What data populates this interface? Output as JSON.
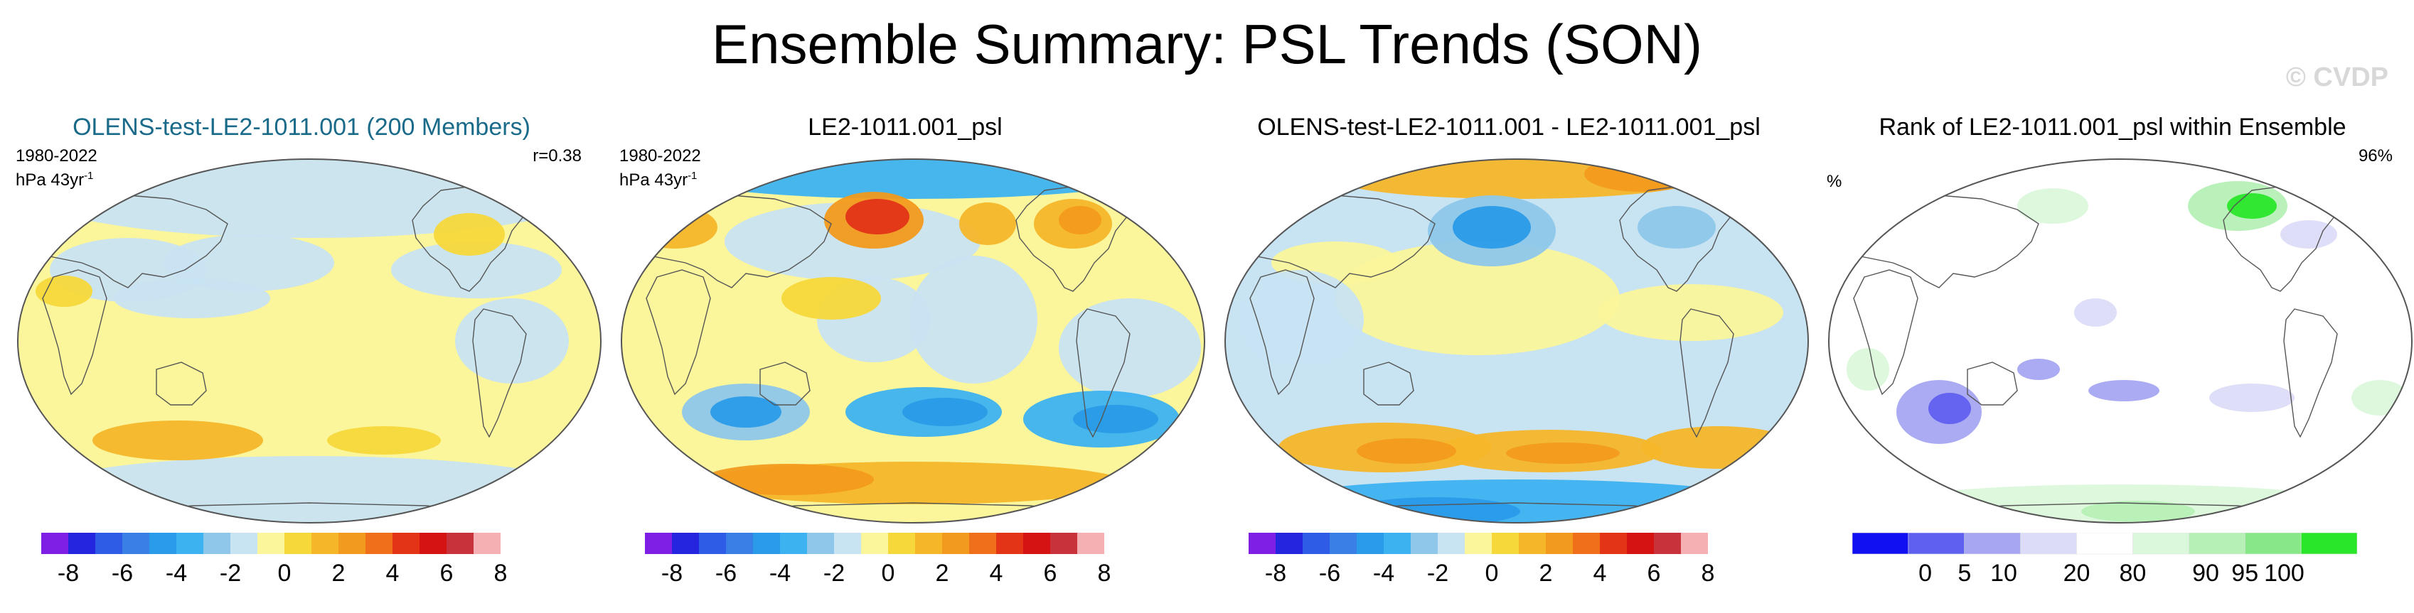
{
  "title": "Ensemble Summary: PSL Trends (SON)",
  "watermark": "© CVDP",
  "colors": {
    "neg": [
      "#7f1fe6",
      "#2525df",
      "#2f5ce6",
      "#3a7fe6",
      "#2a9be8",
      "#3db2f0",
      "#8ec7ea",
      "#c8e3f2"
    ],
    "pos": [
      "#fbf59b",
      "#f7d83a",
      "#f5b62a",
      "#f29a1e",
      "#ef6f1a",
      "#e33418",
      "#d51313",
      "#c8323a",
      "#f4b0b2"
    ],
    "rank": [
      "#1010f0",
      "#6060f0",
      "#a6a6f2",
      "#dcdcf8",
      "#ffffff",
      "#dcf8dc",
      "#b6f0b6",
      "#86e886",
      "#2ae62a"
    ],
    "ocean_pos": "#fbf59b",
    "ocean_neg": "#c8e3f2",
    "coast": "#555555"
  },
  "panels": [
    {
      "title": "OLENS-test-LE2-1011.001 (200 Members)",
      "period": "1980-2022",
      "units": "hPa 43yr",
      "units_sup": "-1",
      "stat": "r=0.38",
      "colorbar": "trend",
      "pattern": "ensemble"
    },
    {
      "title": "LE2-1011.001_psl",
      "period": "1980-2022",
      "units": "hPa 43yr",
      "units_sup": "-1",
      "stat": "",
      "colorbar": "trend",
      "pattern": "obs"
    },
    {
      "title": "OLENS-test-LE2-1011.001 - LE2-1011.001_psl",
      "period": "",
      "units": "",
      "units_sup": "",
      "stat": "",
      "colorbar": "trend",
      "pattern": "diff"
    },
    {
      "title": "Rank of LE2-1011.001_psl within Ensemble",
      "period": "%",
      "units": "",
      "units_sup": "",
      "stat": "96%",
      "colorbar": "rank",
      "pattern": "rank"
    }
  ],
  "chart_data": [
    {
      "type": "heatmap",
      "title": "OLENS-test-LE2-1011.001 (200 Members)",
      "units": "hPa 43yr-1",
      "period": "1980-2022",
      "pattern_correlation": 0.38,
      "colorbar_levels": [
        -8,
        -7,
        -6,
        -5,
        -4,
        -3,
        -2,
        -1,
        0,
        1,
        2,
        3,
        4,
        5,
        6,
        7,
        8
      ],
      "colorbar_tick_labels": [
        "-8",
        "-6",
        "-4",
        "-2",
        "0",
        "2",
        "4",
        "6",
        "8"
      ],
      "features": [
        {
          "region": "Southern Ocean 40-50S Pacific",
          "value": 2
        },
        {
          "region": "Antarctic coast",
          "value": -1
        },
        {
          "region": "North Atlantic 40N",
          "value": 1
        },
        {
          "region": "Arctic",
          "value": -1
        },
        {
          "region": "Tropics",
          "value": 0.5
        }
      ]
    },
    {
      "type": "heatmap",
      "title": "LE2-1011.001_psl",
      "units": "hPa 43yr-1",
      "period": "1980-2022",
      "colorbar_levels": [
        -8,
        -7,
        -6,
        -5,
        -4,
        -3,
        -2,
        -1,
        0,
        1,
        2,
        3,
        4,
        5,
        6,
        7,
        8
      ],
      "colorbar_tick_labels": [
        "-8",
        "-6",
        "-4",
        "-2",
        "0",
        "2",
        "4",
        "6",
        "8"
      ],
      "features": [
        {
          "region": "North Pacific 50N",
          "value": 6
        },
        {
          "region": "Eurasia 60N",
          "value": 3
        },
        {
          "region": "Arctic",
          "value": -3
        },
        {
          "region": "South Pacific 50S",
          "value": -4
        },
        {
          "region": "South Atlantic 45S",
          "value": -4
        },
        {
          "region": "Antarctic coast",
          "value": 3
        }
      ]
    },
    {
      "type": "heatmap",
      "title": "OLENS-test-LE2-1011.001 - LE2-1011.001_psl",
      "colorbar_levels": [
        -8,
        -7,
        -6,
        -5,
        -4,
        -3,
        -2,
        -1,
        0,
        1,
        2,
        3,
        4,
        5,
        6,
        7,
        8
      ],
      "colorbar_tick_labels": [
        "-8",
        "-6",
        "-4",
        "-2",
        "0",
        "2",
        "4",
        "6",
        "8"
      ],
      "features": [
        {
          "region": "North Pacific 50N",
          "value": -4
        },
        {
          "region": "Southern Ocean 45-55S",
          "value": 3
        },
        {
          "region": "Antarctic coast",
          "value": -4
        },
        {
          "region": "Arctic",
          "value": 2
        }
      ]
    },
    {
      "type": "heatmap",
      "title": "Rank of LE2-1011.001_psl within Ensemble",
      "units": "%",
      "percent_of_grid_within_5_95": "96%",
      "colorbar_levels": [
        0,
        5,
        10,
        20,
        80,
        90,
        95,
        100
      ],
      "colorbar_tick_labels": [
        "0",
        "5",
        "10",
        "20",
        "80",
        "90",
        "95",
        "100"
      ],
      "features": [
        {
          "region": "Arctic / N. Europe",
          "value": 99
        },
        {
          "region": "South Indian Ocean",
          "value": 8
        },
        {
          "region": "Antarctic coast",
          "value": 92
        }
      ]
    }
  ]
}
